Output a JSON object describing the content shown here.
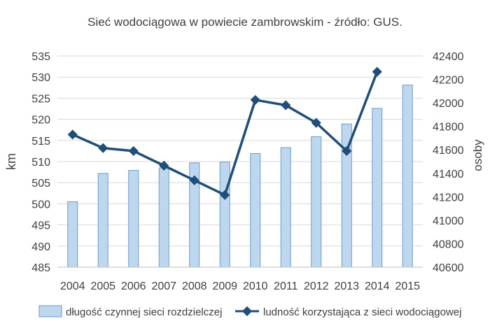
{
  "chart_data": {
    "type": "bar+line",
    "title": "Sieć wodociągowa w powiecie zambrowskim - źródło: GUS.",
    "categories": [
      "2004",
      "2005",
      "2006",
      "2007",
      "2008",
      "2009",
      "2010",
      "2011",
      "2012",
      "2013",
      "2014",
      "2015"
    ],
    "y_left": {
      "label": "km",
      "range": [
        485,
        535
      ],
      "ticks": [
        "485",
        "490",
        "495",
        "500",
        "505",
        "510",
        "515",
        "520",
        "525",
        "530",
        "535"
      ]
    },
    "y_right": {
      "label": "osoby",
      "range": [
        40600,
        42400
      ],
      "ticks": [
        "40600",
        "40800",
        "41000",
        "41200",
        "41400",
        "41600",
        "41800",
        "42000",
        "42200",
        "42400"
      ]
    },
    "series": [
      {
        "name": "długość czynnej sieci rozdzielczej",
        "type": "bar",
        "axis": "left",
        "color": "#bdd7ee",
        "values": [
          500.5,
          507.2,
          507.9,
          508.5,
          509.7,
          509.9,
          511.9,
          513.3,
          515.9,
          518.9,
          522.6,
          528.1
        ]
      },
      {
        "name": "ludność korzystająca z sieci wodociągowej",
        "type": "line",
        "axis": "right",
        "color": "#1f4e79",
        "values": [
          41730,
          41615,
          41590,
          41465,
          41340,
          41215,
          42025,
          41980,
          41830,
          41590,
          42265,
          null
        ]
      }
    ],
    "grid": true,
    "legend": "bottom"
  }
}
